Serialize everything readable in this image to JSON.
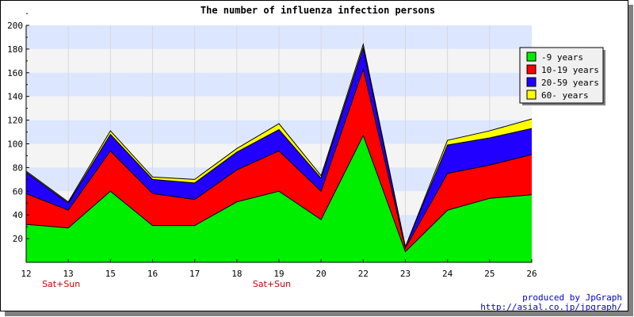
{
  "chart_data": {
    "type": "area",
    "stacked": true,
    "title": "The number of influenza infection persons",
    "x": [
      "12",
      "13",
      "15",
      "16",
      "17",
      "18",
      "19",
      "20",
      "22",
      "23",
      "24",
      "25",
      "26"
    ],
    "x_annotations": [
      {
        "x": "13",
        "text": "Sat+Sun"
      },
      {
        "x": "19",
        "text": "Sat+Sun"
      }
    ],
    "ylim": [
      0,
      200
    ],
    "yticks": [
      20,
      40,
      60,
      80,
      100,
      120,
      140,
      160,
      180,
      200
    ],
    "grid": true,
    "legend_position": "top-right",
    "series": [
      {
        "name": "-9 years",
        "color": "#00ee00",
        "values": [
          32,
          29,
          60,
          31,
          31,
          51,
          60,
          36,
          107,
          9,
          44,
          54,
          57
        ]
      },
      {
        "name": "10-19 years",
        "color": "#ff0000",
        "values": [
          26,
          15,
          34,
          27,
          22,
          27,
          34,
          24,
          56,
          3,
          31,
          28,
          34
        ]
      },
      {
        "name": "20-59 years",
        "color": "#2200ff",
        "values": [
          18,
          6,
          14,
          12,
          14,
          15,
          18,
          11,
          18,
          1,
          24,
          23,
          22
        ]
      },
      {
        "name": "60- years",
        "color": "#ffff00",
        "values": [
          1,
          1,
          3,
          2,
          3,
          3,
          5,
          2,
          3,
          0,
          4,
          6,
          8
        ]
      }
    ],
    "credit": [
      "produced by JpGraph",
      "http://asial.co.jp/jpgraph/"
    ]
  }
}
